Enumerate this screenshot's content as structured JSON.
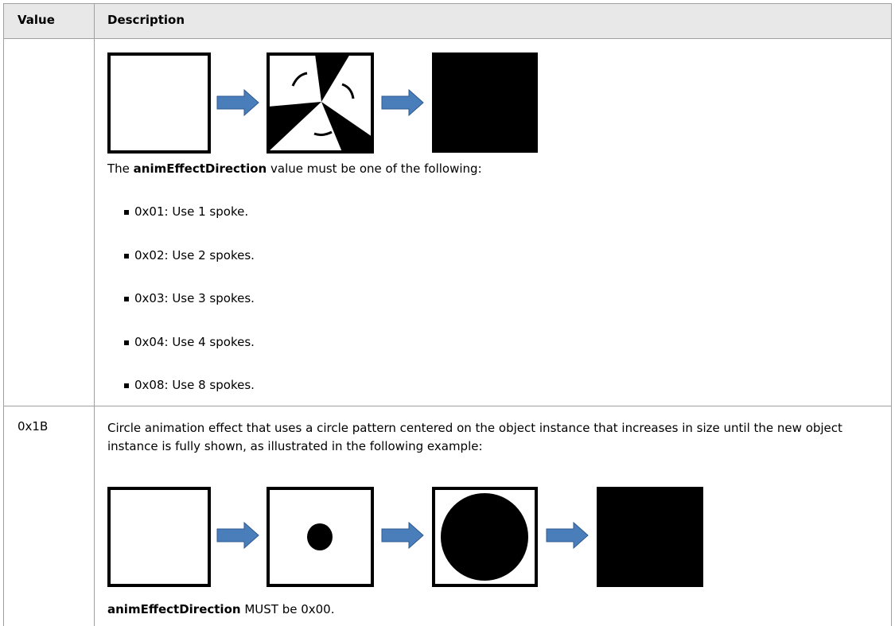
{
  "table": {
    "header": [
      "Value",
      "Description"
    ],
    "rows": [
      {
        "description": {
          "intro": [
            "The ",
            "animEffectDirection",
            " value must be one of the following:"
          ],
          "bullets": [
            "0x01: Use 1 spoke.",
            "0x02: Use 2 spokes.",
            "0x03: Use 3 spokes.",
            "0x04: Use 4 spokes.",
            "0x08: Use 8 spokes."
          ]
        }
      },
      {
        "value": "0x1B",
        "description": {
          "text": "Circle animation effect that uses a circle pattern centered on the object instance that increases in size until the new object instance is fully shown, as illustrated in the following example:",
          "note": [
            "animEffectDirection",
            " MUST be 0x00."
          ]
        }
      }
    ]
  }
}
